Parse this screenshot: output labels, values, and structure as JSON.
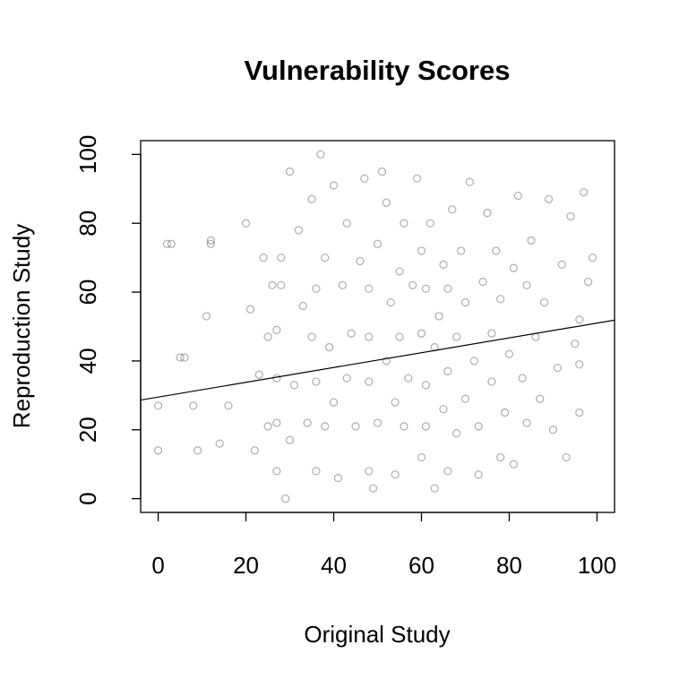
{
  "chart_data": {
    "type": "scatter",
    "title": "Vulnerability Scores",
    "x_label": "Original Study",
    "y_label": "Reproduction Study",
    "xlim": [
      -4,
      104
    ],
    "ylim": [
      -4,
      104
    ],
    "xticks": [
      0,
      20,
      40,
      60,
      80,
      100
    ],
    "yticks": [
      0,
      20,
      40,
      60,
      80,
      100
    ],
    "color": "rgba(0,0,0,0.3)",
    "trend": {
      "intercept": 29.5,
      "slope": 0.215,
      "color": "#000000"
    },
    "x": [
      0,
      0,
      2,
      3,
      5,
      6,
      8,
      9,
      11,
      12,
      12,
      14,
      16,
      20,
      21,
      22,
      23,
      24,
      25,
      25,
      26,
      27,
      27,
      27,
      27,
      28,
      28,
      29,
      30,
      30,
      31,
      32,
      33,
      34,
      35,
      35,
      36,
      36,
      36,
      37,
      38,
      38,
      39,
      40,
      40,
      41,
      42,
      43,
      43,
      44,
      45,
      46,
      47,
      48,
      48,
      48,
      48,
      49,
      50,
      50,
      51,
      52,
      52,
      53,
      54,
      54,
      55,
      55,
      56,
      56,
      57,
      58,
      59,
      60,
      60,
      60,
      61,
      61,
      61,
      62,
      63,
      63,
      64,
      65,
      65,
      66,
      66,
      66,
      67,
      68,
      68,
      69,
      70,
      70,
      71,
      72,
      73,
      73,
      74,
      75,
      76,
      76,
      77,
      78,
      78,
      79,
      80,
      81,
      81,
      82,
      83,
      84,
      84,
      85,
      86,
      87,
      88,
      89,
      90,
      91,
      92,
      93,
      94,
      95,
      96,
      96,
      96,
      97,
      98,
      99
    ],
    "y": [
      27,
      14,
      74,
      74,
      41,
      41,
      27,
      14,
      53,
      74,
      75,
      16,
      27,
      80,
      55,
      14,
      36,
      70,
      47,
      21,
      62,
      8,
      22,
      35,
      49,
      62,
      70,
      0,
      17,
      95,
      33,
      78,
      56,
      22,
      47,
      87,
      8,
      34,
      61,
      100,
      21,
      70,
      44,
      28,
      91,
      6,
      62,
      35,
      80,
      48,
      21,
      69,
      93,
      8,
      34,
      47,
      61,
      3,
      22,
      74,
      95,
      40,
      86,
      57,
      7,
      28,
      47,
      66,
      21,
      80,
      35,
      62,
      93,
      12,
      48,
      72,
      21,
      33,
      61,
      80,
      3,
      44,
      53,
      26,
      68,
      8,
      37,
      61,
      84,
      19,
      47,
      72,
      29,
      57,
      92,
      40,
      7,
      21,
      63,
      83,
      34,
      48,
      72,
      12,
      58,
      25,
      42,
      67,
      10,
      88,
      35,
      22,
      62,
      75,
      47,
      29,
      57,
      87,
      20,
      38,
      68,
      12,
      82,
      45,
      25,
      39,
      52,
      89,
      63,
      70
    ]
  }
}
